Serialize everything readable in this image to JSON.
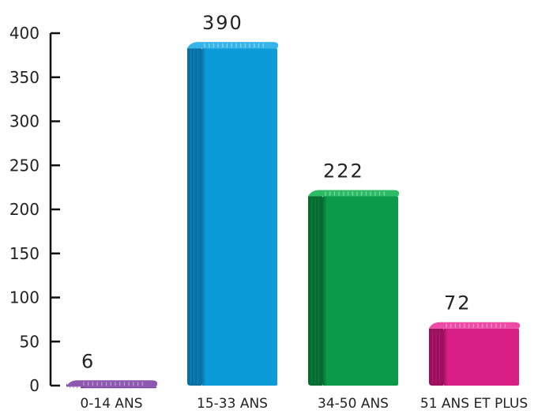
{
  "chart_data": {
    "type": "bar",
    "categories": [
      "0-14 ANS",
      "15-33 ANS",
      "34-50 ANS",
      "51 ANS ET PLUS"
    ],
    "values": [
      6,
      390,
      222,
      72
    ],
    "ylim": [
      0,
      400
    ],
    "yticks": [
      0,
      50,
      100,
      150,
      200,
      250,
      300,
      350,
      400
    ],
    "title": "",
    "xlabel": "",
    "ylabel": "",
    "grid": false,
    "colors": [
      "#7a3f9a",
      "#0b9bd8",
      "#0a9a48",
      "#d81f86"
    ],
    "top_colors": [
      "#8f58b0",
      "#35b5ea",
      "#2dbb66",
      "#ee4aa6"
    ],
    "side_colors": [
      "#4e2368",
      "#0a6fa5",
      "#066b31",
      "#9b105c"
    ]
  }
}
